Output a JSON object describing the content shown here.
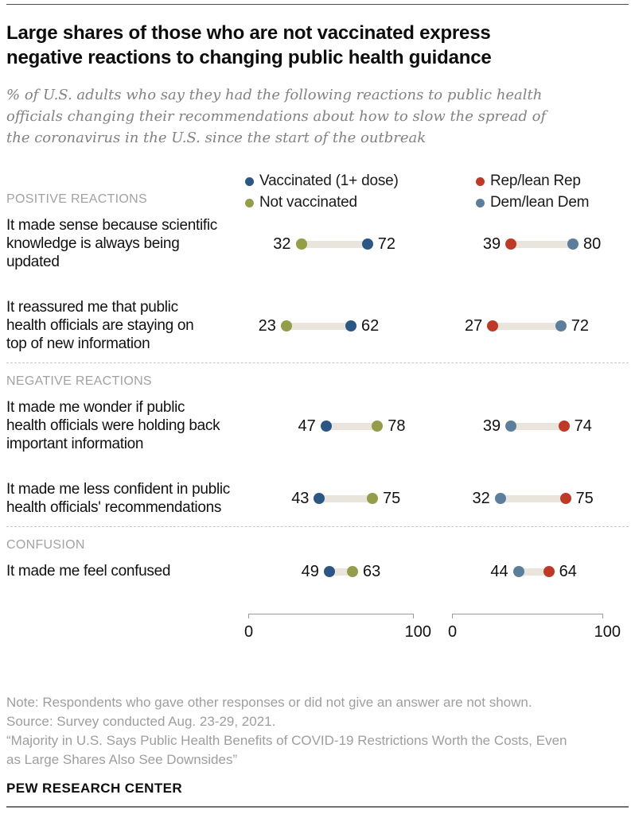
{
  "header": {
    "title": "Large shares of those who are not vaccinated express\nnegative reactions to changing public health guidance",
    "subtitle": "% of U.S. adults who say they had the following reactions to public health\nofficials changing their recommendations about how to slow the spread of\nthe coronavirus in the U.S. since the start of the outbreak"
  },
  "colors": {
    "vaccinated": "#2a5783",
    "not_vaccinated": "#949d48",
    "rep": "#bf3927",
    "dem": "#5b7e9c",
    "track": "#e9e5dc"
  },
  "legend": {
    "groups": [
      {
        "items": [
          {
            "key": "vaccinated",
            "label": "Vaccinated (1+ dose)"
          },
          {
            "key": "not_vaccinated",
            "label": "Not vaccinated"
          }
        ]
      },
      {
        "items": [
          {
            "key": "rep",
            "label": "Rep/lean Rep"
          },
          {
            "key": "dem",
            "label": "Dem/lean Dem"
          }
        ]
      }
    ]
  },
  "chart_data": {
    "type": "dumbbell",
    "axis": {
      "min": 0,
      "max": 100,
      "min_label": "0",
      "max_label": "100"
    },
    "panels": [
      {
        "name": "vaccination-status",
        "series_keys": [
          "vaccinated",
          "not_vaccinated"
        ]
      },
      {
        "name": "party",
        "series_keys": [
          "rep",
          "dem"
        ]
      }
    ],
    "sections": [
      {
        "header": "POSITIVE REACTIONS",
        "rows": [
          {
            "label": "It made sense because scientific\nknowledge is always being\nupdated",
            "values": {
              "vaccinated": 72,
              "not_vaccinated": 32,
              "rep": 39,
              "dem": 80
            }
          },
          {
            "label": "It reassured me that public\nhealth officials are staying on\ntop of new information",
            "values": {
              "vaccinated": 62,
              "not_vaccinated": 23,
              "rep": 27,
              "dem": 72
            }
          }
        ]
      },
      {
        "header": "NEGATIVE REACTIONS",
        "rows": [
          {
            "label": "It made me wonder if public\nhealth officials were holding back\nimportant information",
            "values": {
              "vaccinated": 47,
              "not_vaccinated": 78,
              "rep": 74,
              "dem": 39
            }
          },
          {
            "label": "It made me less confident in public\nhealth officials' recommendations",
            "values": {
              "vaccinated": 43,
              "not_vaccinated": 75,
              "rep": 75,
              "dem": 32
            }
          }
        ]
      },
      {
        "header": "CONFUSION",
        "rows": [
          {
            "label": "It made me feel confused",
            "values": {
              "vaccinated": 49,
              "not_vaccinated": 63,
              "rep": 64,
              "dem": 44
            }
          }
        ]
      }
    ]
  },
  "notes": {
    "lines": [
      "Note: Respondents who gave other responses or did not give an answer are not shown.",
      "Source: Survey conducted Aug. 23-29, 2021.",
      "“Majority in U.S. Says Public Health Benefits of COVID-19 Restrictions Worth the Costs, Even\nas Large Shares Also See Downsides”"
    ]
  },
  "footer": {
    "brand": "PEW RESEARCH CENTER"
  }
}
